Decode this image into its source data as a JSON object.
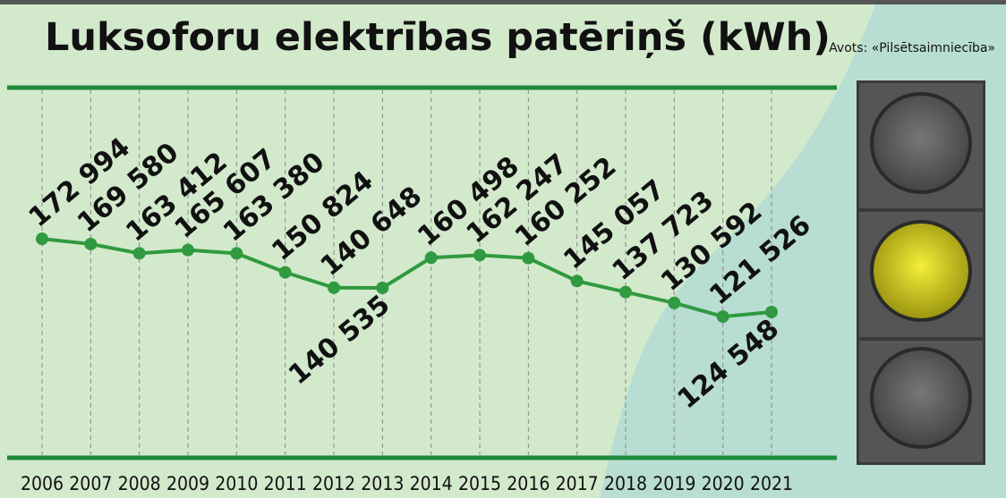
{
  "chart_data": {
    "type": "line",
    "title": "Luksoforu elektrības patēriņš (kWh)",
    "source": "Avots: «Pilsētsaimniecība»",
    "categories": [
      "2006",
      "2007",
      "2008",
      "2009",
      "2010",
      "2011",
      "2012",
      "2013",
      "2014",
      "2015",
      "2016",
      "2017",
      "2018",
      "2019",
      "2020",
      "2021"
    ],
    "values": [
      172994,
      169580,
      163412,
      165607,
      163380,
      150824,
      140648,
      140535,
      160498,
      162247,
      160252,
      145057,
      137723,
      130592,
      121526,
      124548
    ],
    "value_labels": [
      "172 994",
      "169 580",
      "163 412",
      "165 607",
      "163 380",
      "150 824",
      "140 648",
      "140 535",
      "160 498",
      "162 247",
      "160 252",
      "145 057",
      "137 723",
      "130 592",
      "121 526",
      "124 548"
    ],
    "color": "#2f9a3f",
    "ylim": [
      28000,
      272000
    ]
  }
}
